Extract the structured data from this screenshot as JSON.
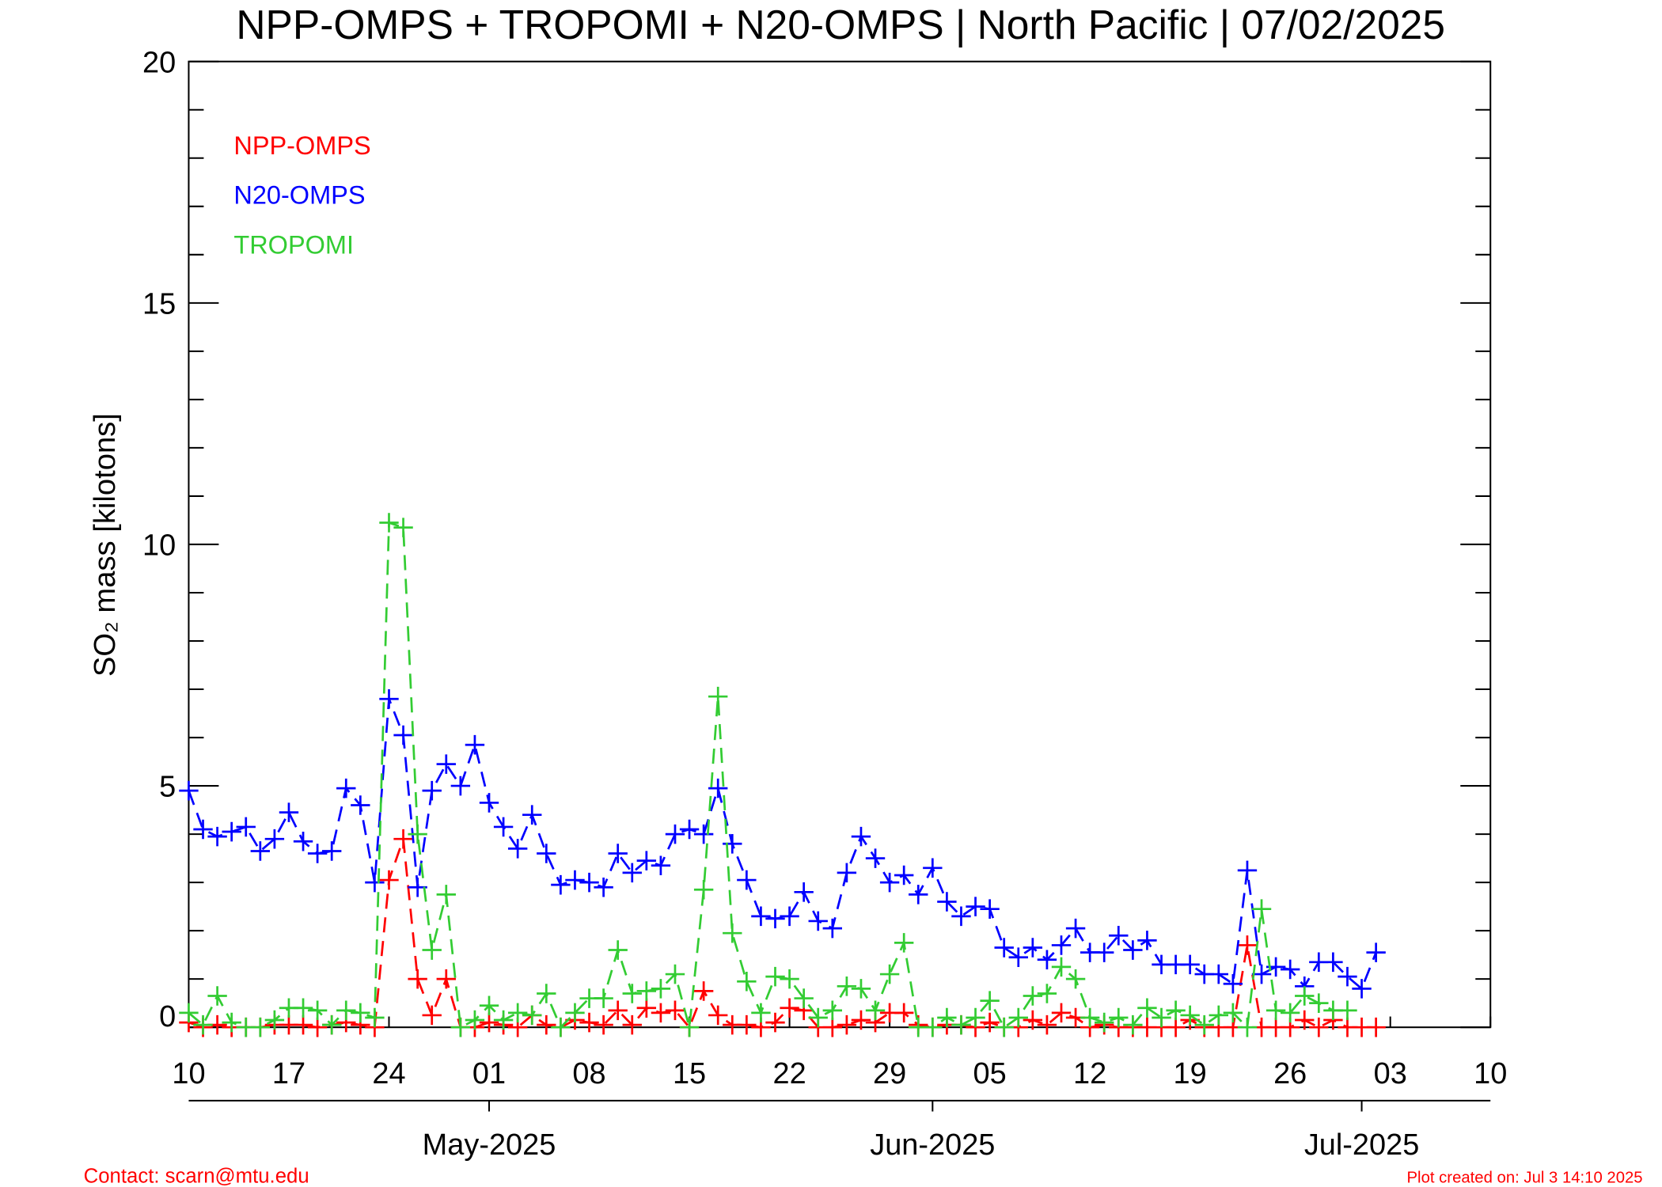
{
  "chart_data": {
    "type": "line",
    "title": "NPP-OMPS + TROPOMI + N20-OMPS | North Pacific | 07/02/2025",
    "y_label": "SO₂ mass [kilotons]",
    "footer_left": "Contact: scarn@mtu.edu",
    "footer_right": "Plot created on: Jul  3 14:10 2025",
    "legend": "upper left",
    "x": [
      "2025-04-10",
      "2025-04-11",
      "2025-04-12",
      "2025-04-13",
      "2025-04-14",
      "2025-04-15",
      "2025-04-16",
      "2025-04-17",
      "2025-04-18",
      "2025-04-19",
      "2025-04-20",
      "2025-04-21",
      "2025-04-22",
      "2025-04-23",
      "2025-04-24",
      "2025-04-25",
      "2025-04-26",
      "2025-04-27",
      "2025-04-28",
      "2025-04-29",
      "2025-04-30",
      "2025-05-01",
      "2025-05-02",
      "2025-05-03",
      "2025-05-04",
      "2025-05-05",
      "2025-05-06",
      "2025-05-07",
      "2025-05-08",
      "2025-05-09",
      "2025-05-10",
      "2025-05-11",
      "2025-05-12",
      "2025-05-13",
      "2025-05-14",
      "2025-05-15",
      "2025-05-16",
      "2025-05-17",
      "2025-05-18",
      "2025-05-19",
      "2025-05-20",
      "2025-05-21",
      "2025-05-22",
      "2025-05-23",
      "2025-05-24",
      "2025-05-25",
      "2025-05-26",
      "2025-05-27",
      "2025-05-28",
      "2025-05-29",
      "2025-05-30",
      "2025-05-31",
      "2025-06-01",
      "2025-06-02",
      "2025-06-03",
      "2025-06-04",
      "2025-06-05",
      "2025-06-06",
      "2025-06-07",
      "2025-06-08",
      "2025-06-09",
      "2025-06-10",
      "2025-06-11",
      "2025-06-12",
      "2025-06-13",
      "2025-06-14",
      "2025-06-15",
      "2025-06-16",
      "2025-06-17",
      "2025-06-18",
      "2025-06-19",
      "2025-06-20",
      "2025-06-21",
      "2025-06-22",
      "2025-06-23",
      "2025-06-24",
      "2025-06-25",
      "2025-06-26",
      "2025-06-27",
      "2025-06-28",
      "2025-06-29",
      "2025-06-30",
      "2025-07-01",
      "2025-07-02"
    ],
    "series": [
      {
        "name": "NPP-OMPS",
        "color": "#ff0000",
        "values": [
          0.1,
          0,
          0.05,
          0,
          0,
          0,
          0.05,
          0.05,
          0.05,
          0,
          0.05,
          0.1,
          0.05,
          0,
          3.05,
          3.9,
          1.0,
          0.25,
          1.0,
          0,
          0,
          0.1,
          0.05,
          0,
          0.25,
          0.05,
          0,
          0.15,
          0.1,
          0.05,
          0.35,
          0.05,
          0.4,
          0.3,
          0.35,
          0,
          0.75,
          0.25,
          0.05,
          0.05,
          0,
          0.1,
          0.4,
          0.35,
          0,
          0,
          0.05,
          0.15,
          0.1,
          0.3,
          0.3,
          0.05,
          0,
          0.05,
          0.05,
          0,
          0.1,
          0,
          0,
          0.15,
          0.05,
          0.3,
          0.2,
          0,
          0.05,
          0,
          0,
          0,
          0,
          0,
          0.15,
          0,
          0,
          0,
          1.7,
          0,
          0,
          0,
          0.15,
          0,
          0.15,
          0,
          0,
          0
        ]
      },
      {
        "name": "N20-OMPS",
        "color": "#0000ff",
        "values": [
          4.9,
          4.1,
          3.95,
          4.05,
          4.15,
          3.65,
          3.9,
          4.45,
          3.85,
          3.6,
          3.65,
          4.95,
          4.6,
          3.0,
          6.8,
          6.05,
          2.9,
          4.9,
          5.45,
          5.0,
          5.85,
          4.65,
          4.15,
          3.7,
          4.4,
          3.6,
          2.95,
          3.05,
          3.0,
          2.9,
          3.6,
          3.2,
          3.45,
          3.35,
          4.0,
          4.1,
          4.0,
          4.95,
          3.8,
          3.05,
          2.3,
          2.25,
          2.3,
          2.8,
          2.2,
          2.05,
          3.2,
          3.95,
          3.5,
          3.0,
          3.15,
          2.75,
          3.3,
          2.6,
          2.3,
          2.5,
          2.45,
          1.65,
          1.45,
          1.65,
          1.4,
          1.7,
          2.05,
          1.55,
          1.55,
          1.9,
          1.6,
          1.8,
          1.3,
          1.3,
          1.3,
          1.1,
          1.1,
          0.9,
          3.25,
          1.1,
          1.25,
          1.2,
          0.85,
          1.35,
          1.35,
          1.05,
          0.8,
          1.55
        ]
      },
      {
        "name": "TROPOMI",
        "color": "#33cc33",
        "values": [
          0.3,
          0.05,
          0.65,
          0.1,
          0,
          0,
          0.15,
          0.4,
          0.4,
          0.35,
          0.05,
          0.35,
          0.3,
          0.2,
          10.45,
          10.35,
          4.0,
          1.6,
          2.75,
          0,
          0.15,
          0.45,
          0.15,
          0.3,
          0.25,
          0.7,
          0,
          0.3,
          0.6,
          0.6,
          1.6,
          0.7,
          0.75,
          0.8,
          1.1,
          0,
          2.85,
          6.85,
          1.95,
          0.95,
          0.3,
          1.05,
          1.0,
          0.6,
          0.2,
          0.35,
          0.85,
          0.8,
          0.35,
          1.1,
          1.75,
          0,
          0,
          0.2,
          0.05,
          0.2,
          0.55,
          0,
          0.2,
          0.65,
          0.7,
          1.25,
          1.0,
          0.2,
          0.1,
          0.2,
          0.05,
          0.4,
          0.2,
          0.35,
          0.25,
          0.05,
          0.25,
          0.3,
          0,
          2.45,
          0.35,
          0.3,
          0.65,
          0.5,
          0.35,
          0.35,
          null,
          null
        ]
      }
    ],
    "xlim": [
      "2025-04-10",
      "2025-07-10"
    ],
    "xticks": [
      {
        "value": "2025-04-10",
        "label": "10"
      },
      {
        "value": "2025-04-17",
        "label": "17"
      },
      {
        "value": "2025-04-24",
        "label": "24"
      },
      {
        "value": "2025-05-01",
        "label": "01"
      },
      {
        "value": "2025-05-08",
        "label": "08"
      },
      {
        "value": "2025-05-15",
        "label": "15"
      },
      {
        "value": "2025-05-22",
        "label": "22"
      },
      {
        "value": "2025-05-29",
        "label": "29"
      },
      {
        "value": "2025-06-05",
        "label": "05"
      },
      {
        "value": "2025-06-12",
        "label": "12"
      },
      {
        "value": "2025-06-19",
        "label": "19"
      },
      {
        "value": "2025-06-26",
        "label": "26"
      },
      {
        "value": "2025-07-03",
        "label": "03"
      },
      {
        "value": "2025-07-10",
        "label": "10"
      }
    ],
    "month_ticks": [
      {
        "value": "2025-05-01",
        "label": "May-2025"
      },
      {
        "value": "2025-06-01",
        "label": "Jun-2025"
      },
      {
        "value": "2025-07-01",
        "label": "Jul-2025"
      }
    ],
    "ylim": [
      0,
      20
    ],
    "yticks": [
      0,
      5,
      10,
      15,
      20
    ],
    "yminorticks": [
      1,
      2,
      3,
      4,
      6,
      7,
      8,
      9,
      11,
      12,
      13,
      14,
      16,
      17,
      18,
      19
    ]
  }
}
